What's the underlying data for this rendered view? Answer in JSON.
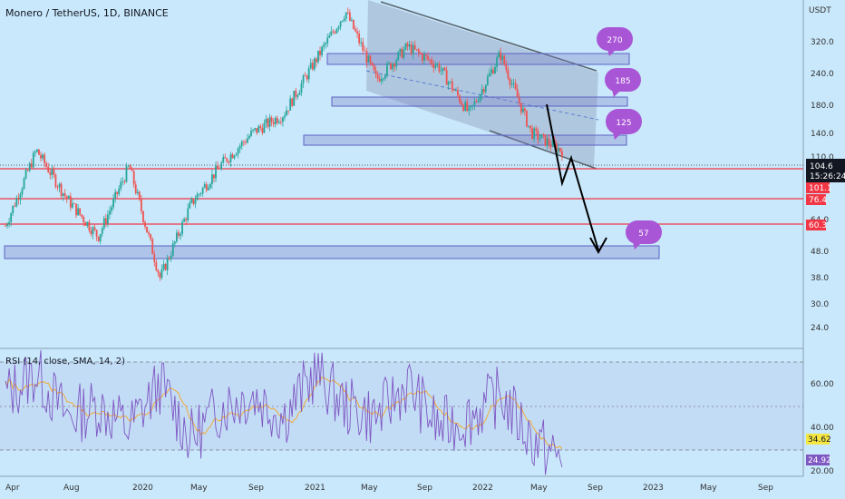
{
  "header": {
    "symbol_title": "Monero / TetherUS, 1D, BINANCE",
    "currency": "USDT"
  },
  "rsi": {
    "title": "RSI (14, close, SMA, 14, 2)",
    "value_rsi": "24.92",
    "value_sma": "34.62",
    "levels": [
      70,
      50,
      30
    ],
    "ticks": [
      "60.00",
      "40.00",
      "20.00"
    ],
    "rsi_color": "#7e57c2",
    "sma_color": "#f5a623"
  },
  "price_axis": {
    "ticks": [
      "320.0",
      "240.0",
      "180.0",
      "140.0",
      "110.0",
      "64.0",
      "48.0",
      "38.0",
      "30.0",
      "24.0"
    ],
    "log_scale": true
  },
  "price_badges": {
    "current_price": "104.6",
    "countdown": "15:26:24",
    "level_1": "101.1",
    "level_2": "76.4",
    "level_3": "60.3"
  },
  "time_axis": {
    "ticks": [
      "Apr",
      "Aug",
      "2020",
      "May",
      "Sep",
      "2021",
      "May",
      "Sep",
      "2022",
      "May",
      "Sep",
      "2023",
      "May",
      "Sep"
    ]
  },
  "annotations": {
    "bubbles": [
      "270",
      "185",
      "125",
      "57"
    ],
    "bubble_color": "#a855d6",
    "support_line_color": "#f23645",
    "zone_color": "#7d80c9"
  },
  "chart_data": {
    "type": "candlestick",
    "symbol": "XMR/USDT",
    "interval": "1D",
    "exchange": "BINANCE",
    "x_range": [
      "2019-04",
      "2023-09"
    ],
    "y_range_approx": [
      20,
      450
    ],
    "horizontal_levels": [
      101.1,
      76.4,
      60.3
    ],
    "target_bubbles": [
      270,
      185,
      125,
      57
    ],
    "path_points": [
      {
        "date": "2019-04",
        "close": 50
      },
      {
        "date": "2019-06",
        "close": 105
      },
      {
        "date": "2019-09",
        "close": 65
      },
      {
        "date": "2019-12",
        "close": 45
      },
      {
        "date": "2020-02",
        "close": 90
      },
      {
        "date": "2020-03",
        "close": 30
      },
      {
        "date": "2020-05",
        "close": 62
      },
      {
        "date": "2020-08",
        "close": 92
      },
      {
        "date": "2020-11",
        "close": 125
      },
      {
        "date": "2021-01",
        "close": 150
      },
      {
        "date": "2021-03",
        "close": 250
      },
      {
        "date": "2021-05",
        "close": 410
      },
      {
        "date": "2021-07",
        "close": 210
      },
      {
        "date": "2021-09",
        "close": 290
      },
      {
        "date": "2021-11",
        "close": 240
      },
      {
        "date": "2022-01",
        "close": 150
      },
      {
        "date": "2022-04",
        "close": 270
      },
      {
        "date": "2022-05",
        "close": 125
      },
      {
        "date": "2022-06",
        "close": 104.6
      }
    ],
    "rsi_points": [
      55,
      65,
      45,
      50,
      40,
      60,
      35,
      50,
      55,
      45,
      65,
      50,
      45,
      60,
      40,
      45,
      55,
      35,
      25
    ]
  }
}
